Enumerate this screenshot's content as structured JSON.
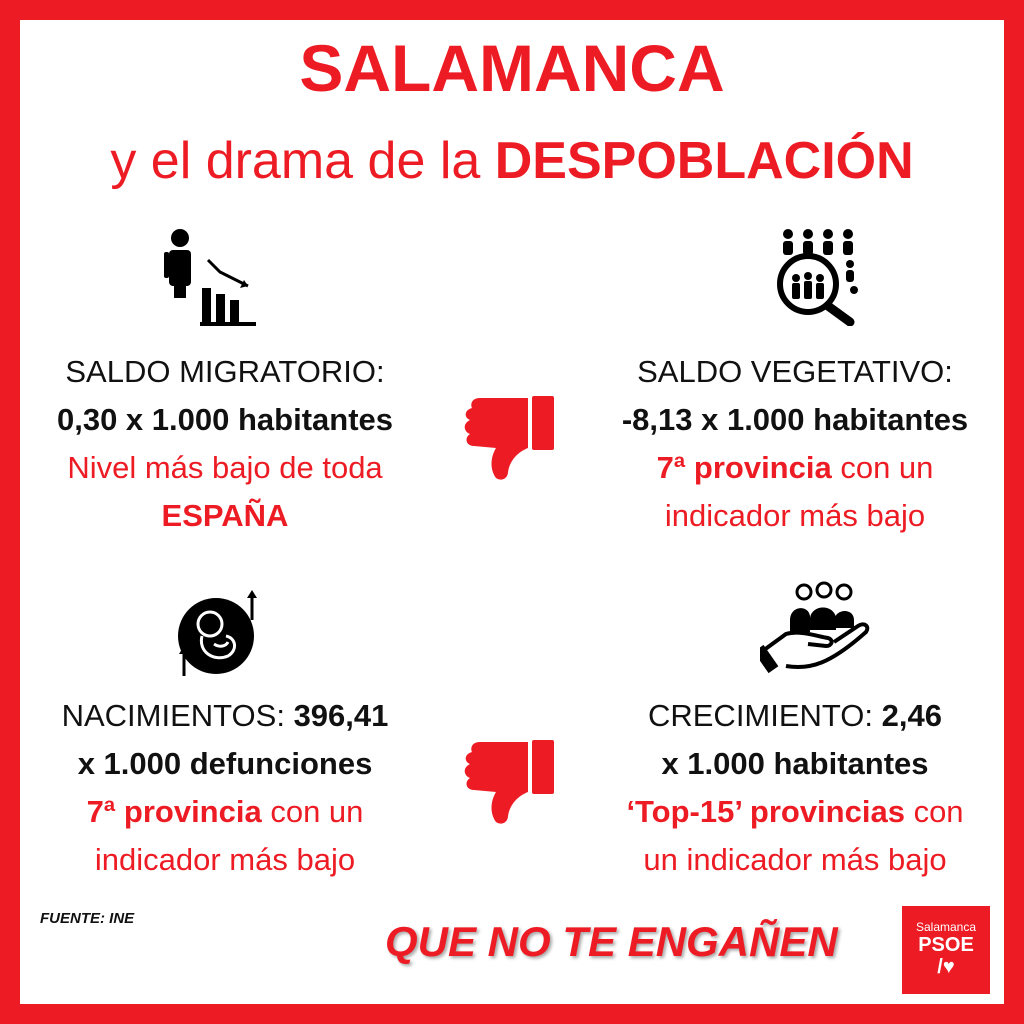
{
  "header": {
    "title": "SALAMANCA",
    "subtitle_prefix": "y el drama de la ",
    "subtitle_bold": "DESPOBLACIÓN"
  },
  "blocks": {
    "saldo_migratorio": {
      "label": "SALDO MIGRATORIO:",
      "value": "0,30 x 1.000 habitantes",
      "note_1": "Nivel más bajo de toda",
      "note_2": "ESPAÑA"
    },
    "saldo_vegetativo": {
      "label": "SALDO VEGETATIVO:",
      "value": "-8,13 x 1.000 habitantes",
      "note_bold": "7ª provincia",
      "note_rest": " con un",
      "note_2": "indicador más bajo"
    },
    "nacimientos": {
      "label": "NACIMIENTOS: ",
      "label_value": "396,41",
      "value": "x 1.000 defunciones",
      "note_bold": "7ª provincia",
      "note_rest": " con un",
      "note_2": "indicador más bajo"
    },
    "crecimiento": {
      "label": "CRECIMIENTO: ",
      "label_value": "2,46",
      "value": "x 1.000 habitantes",
      "note_bold": "‘Top-15’ provincias",
      "note_rest": " con",
      "note_2": "un indicador más bajo"
    }
  },
  "footer": {
    "source": "FUENTE: INE",
    "slogan": "QUE NO TE ENGAÑEN",
    "logo_top": "Salamanca",
    "logo_mid": "PSOE",
    "logo_bottom": "/♥"
  },
  "icons": {
    "migration": "person-declining-chart-icon",
    "vegetative": "people-magnifier-icon",
    "births": "fetus-icon",
    "growth": "hand-holding-people-icon",
    "thumbs": "thumbs-down-icon"
  },
  "colors": {
    "accent": "#ed1c24",
    "text": "#111111",
    "background": "#ffffff"
  }
}
